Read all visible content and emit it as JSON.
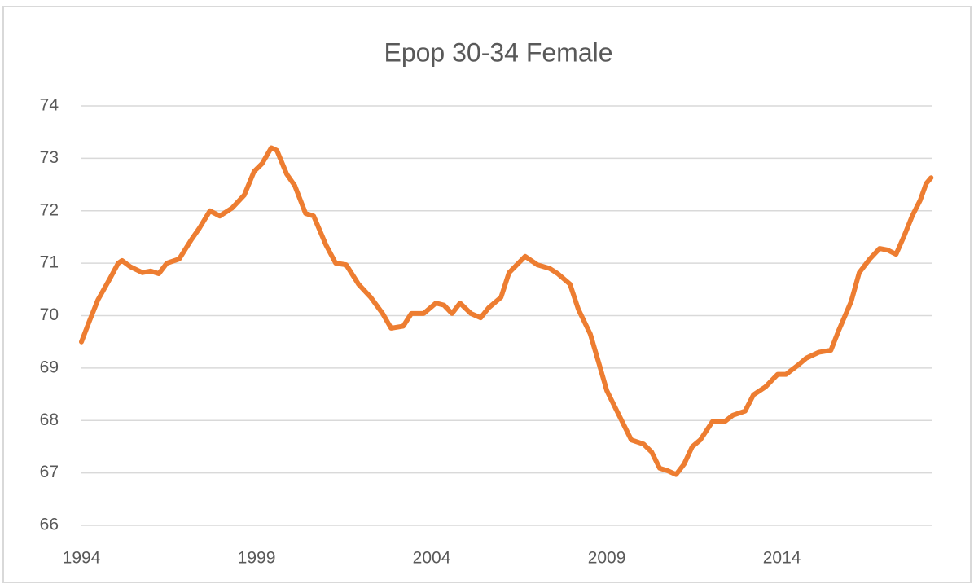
{
  "chart_data": {
    "type": "line",
    "title": "Epop 30-34 Female",
    "x": [
      1994.0,
      1994.23,
      1994.47,
      1994.81,
      1995.05,
      1995.16,
      1995.4,
      1995.74,
      1995.98,
      1996.21,
      1996.44,
      1996.79,
      1997.14,
      1997.37,
      1997.67,
      1997.95,
      1998.3,
      1998.65,
      1998.93,
      1999.16,
      1999.42,
      1999.58,
      1999.86,
      2000.09,
      2000.4,
      2000.63,
      2000.98,
      2001.26,
      2001.56,
      2001.91,
      2002.26,
      2002.6,
      2002.84,
      2003.19,
      2003.42,
      2003.77,
      2004.12,
      2004.35,
      2004.58,
      2004.81,
      2005.12,
      2005.4,
      2005.63,
      2005.98,
      2006.21,
      2006.67,
      2007.02,
      2007.37,
      2007.6,
      2007.95,
      2008.19,
      2008.53,
      2008.77,
      2009.0,
      2009.35,
      2009.7,
      2010.05,
      2010.28,
      2010.51,
      2010.74,
      2010.98,
      2011.21,
      2011.44,
      2011.67,
      2012.02,
      2012.37,
      2012.6,
      2012.95,
      2013.19,
      2013.53,
      2013.88,
      2014.12,
      2014.47,
      2014.7,
      2015.05,
      2015.4,
      2015.63,
      2015.98,
      2016.21,
      2016.51,
      2016.79,
      2017.02,
      2017.26,
      2017.49,
      2017.72,
      2017.95,
      2018.12,
      2018.26
    ],
    "values": [
      69.5,
      69.9,
      70.3,
      70.7,
      71.0,
      71.05,
      70.93,
      70.82,
      70.85,
      70.8,
      71.0,
      71.08,
      71.45,
      71.67,
      72.0,
      71.9,
      72.05,
      72.3,
      72.75,
      72.9,
      73.2,
      73.15,
      72.7,
      72.48,
      71.95,
      71.9,
      71.35,
      71.0,
      70.97,
      70.6,
      70.35,
      70.04,
      69.76,
      69.8,
      70.04,
      70.04,
      70.24,
      70.2,
      70.04,
      70.24,
      70.04,
      69.96,
      70.15,
      70.35,
      70.82,
      71.13,
      70.97,
      70.9,
      70.8,
      70.6,
      70.12,
      69.65,
      69.1,
      68.57,
      68.1,
      67.63,
      67.55,
      67.4,
      67.09,
      67.04,
      66.97,
      67.17,
      67.5,
      67.63,
      67.98,
      67.98,
      68.1,
      68.18,
      68.49,
      68.64,
      68.88,
      68.88,
      69.06,
      69.19,
      69.3,
      69.34,
      69.73,
      70.27,
      70.82,
      71.08,
      71.28,
      71.25,
      71.17,
      71.52,
      71.9,
      72.2,
      72.52,
      72.63
    ],
    "color": "#ed7d31",
    "xlim": [
      1994,
      2018.3
    ],
    "xticks": [
      1994,
      1999,
      2004,
      2009,
      2014
    ],
    "ylim": [
      66,
      74
    ],
    "yticks": [
      66,
      67,
      68,
      69,
      70,
      71,
      72,
      73,
      74
    ],
    "grid": true
  }
}
